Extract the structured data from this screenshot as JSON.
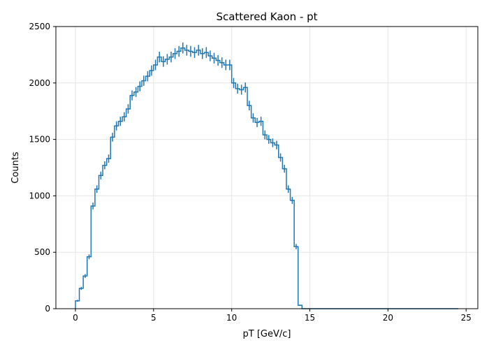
{
  "chart_data": {
    "type": "histogram",
    "title": "Scattered Kaon - pt",
    "xlabel": "pT [GeV/c]",
    "ylabel": "Counts",
    "xlim": [
      -1.25,
      25.75
    ],
    "ylim": [
      0,
      2500
    ],
    "xticks": [
      0,
      5,
      10,
      15,
      20,
      25
    ],
    "yticks": [
      0,
      500,
      1000,
      1500,
      2000,
      2500
    ],
    "grid": true,
    "color": "#1f77b4",
    "bin_width": 0.25,
    "x_start": 0,
    "values": [
      70,
      180,
      290,
      460,
      910,
      1060,
      1180,
      1270,
      1330,
      1520,
      1620,
      1660,
      1700,
      1770,
      1890,
      1920,
      1970,
      2020,
      2060,
      2110,
      2160,
      2230,
      2190,
      2210,
      2230,
      2260,
      2280,
      2310,
      2290,
      2280,
      2270,
      2290,
      2260,
      2270,
      2240,
      2220,
      2200,
      2180,
      2160,
      2160,
      2000,
      1950,
      1940,
      1960,
      1800,
      1690,
      1650,
      1660,
      1540,
      1500,
      1470,
      1450,
      1340,
      1240,
      1060,
      960,
      550,
      30,
      0,
      0,
      0,
      0,
      0,
      0,
      0,
      0,
      0,
      0,
      0,
      0,
      0,
      0,
      0,
      0,
      0,
      0,
      0,
      0,
      0,
      0,
      0,
      0,
      0,
      0,
      0,
      0,
      0,
      0,
      0,
      0,
      0,
      0,
      0,
      0,
      0,
      0,
      0,
      0
    ]
  }
}
